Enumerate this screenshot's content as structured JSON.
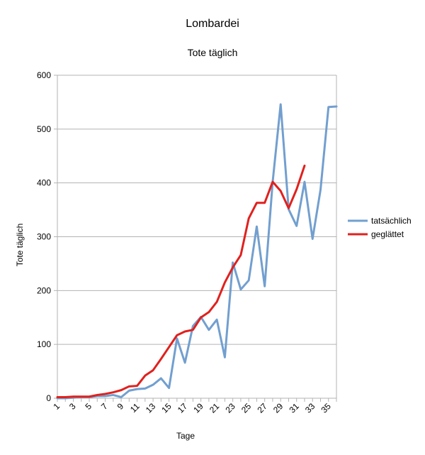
{
  "chart_data": {
    "type": "line",
    "title": "Lombardei",
    "subtitle": "Tote täglich",
    "xlabel": "Tage",
    "ylabel": "Tote täglich",
    "ylim": [
      0,
      600
    ],
    "y_ticks": [
      "0",
      "100",
      "200",
      "300",
      "400",
      "500",
      "600"
    ],
    "x_ticks": [
      "1",
      "3",
      "5",
      "7",
      "9",
      "11",
      "13",
      "15",
      "17",
      "19",
      "21",
      "23",
      "25",
      "27",
      "29",
      "31",
      "33",
      "35"
    ],
    "x": [
      1,
      2,
      3,
      4,
      5,
      6,
      7,
      8,
      9,
      10,
      11,
      12,
      13,
      14,
      15,
      16,
      17,
      18,
      19,
      20,
      21,
      22,
      23,
      24,
      25,
      26,
      27,
      28,
      29,
      30,
      31,
      32,
      33,
      34,
      35,
      36
    ],
    "grid": true,
    "legend_position": "right",
    "series": [
      {
        "name": "tatsächlich",
        "color": "#729fcf",
        "values": [
          0,
          0,
          1,
          2,
          2,
          4,
          4,
          6,
          2,
          14,
          17,
          18,
          25,
          37,
          19,
          111,
          66,
          134,
          151,
          127,
          146,
          76,
          252,
          202,
          219,
          319,
          208,
          402,
          546,
          351,
          320,
          402,
          296,
          387,
          541,
          542
        ]
      },
      {
        "name": "geglättet",
        "color": "#e0211e",
        "values": [
          2,
          2,
          3,
          3,
          3,
          6,
          8,
          11,
          15,
          22,
          23,
          42,
          52,
          73,
          95,
          117,
          124,
          127,
          150,
          160,
          179,
          215,
          243,
          266,
          334,
          363,
          363,
          402,
          385,
          353,
          388,
          432,
          null,
          null,
          null,
          null
        ]
      }
    ]
  }
}
